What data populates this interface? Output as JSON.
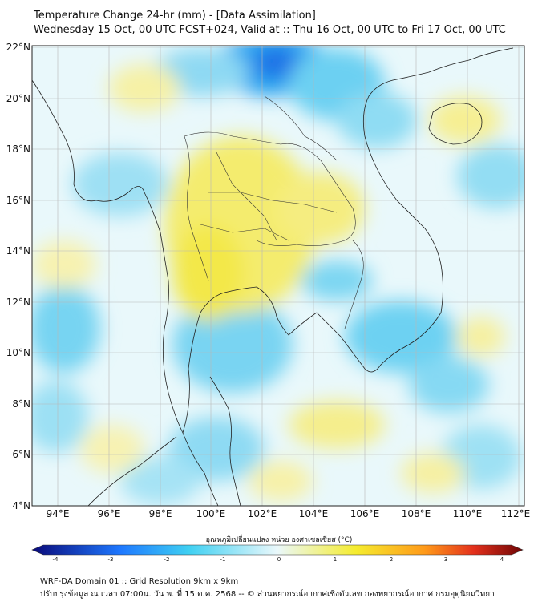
{
  "title": {
    "line1": "Temperature Change 24-hr (mm) - [Data Assimilation]",
    "line2": "Wednesday 15 Oct, 00 UTC FCST+024, Valid at :: Thu 16 Oct, 00 UTC to Fri 17 Oct, 00 UTC"
  },
  "axes": {
    "lat_labels": [
      "22°N",
      "20°N",
      "18°N",
      "16°N",
      "14°N",
      "12°N",
      "10°N",
      "8°N",
      "6°N",
      "4°N"
    ],
    "lon_labels": [
      "94°E",
      "96°E",
      "98°E",
      "100°E",
      "102°E",
      "104°E",
      "106°E",
      "108°E",
      "110°E",
      "112°E"
    ]
  },
  "colorbar": {
    "title": "อุณหภูมิเปลี่ยนแปลง หน่วย องศาเซลเซียส (°C)",
    "ticks": [
      "-4",
      "-3",
      "-2",
      "-1",
      "0",
      "1",
      "2",
      "3",
      "4"
    ],
    "colors": {
      "min": "#0a0a7a",
      "blue": "#1e78ff",
      "cyan": "#3fd0f2",
      "light": "#e6f7fb",
      "yellow": "#f5ec2e",
      "orange": "#ff9a1a",
      "red": "#e3301c",
      "max": "#6e0505"
    }
  },
  "footer": {
    "line1": "WRF-DA Domain 01 :: Grid Resolution 9km x 9km",
    "line2": "ปรับปรุงข้อมูล ณ เวลา 07:00น. วัน พ. ที่ 15 ต.ค. 2568 -- © ส่วนพยากรณ์อากาศเชิงตัวเลข กองพยากรณ์อากาศ กรมอุตุนิยมวิทยา"
  }
}
